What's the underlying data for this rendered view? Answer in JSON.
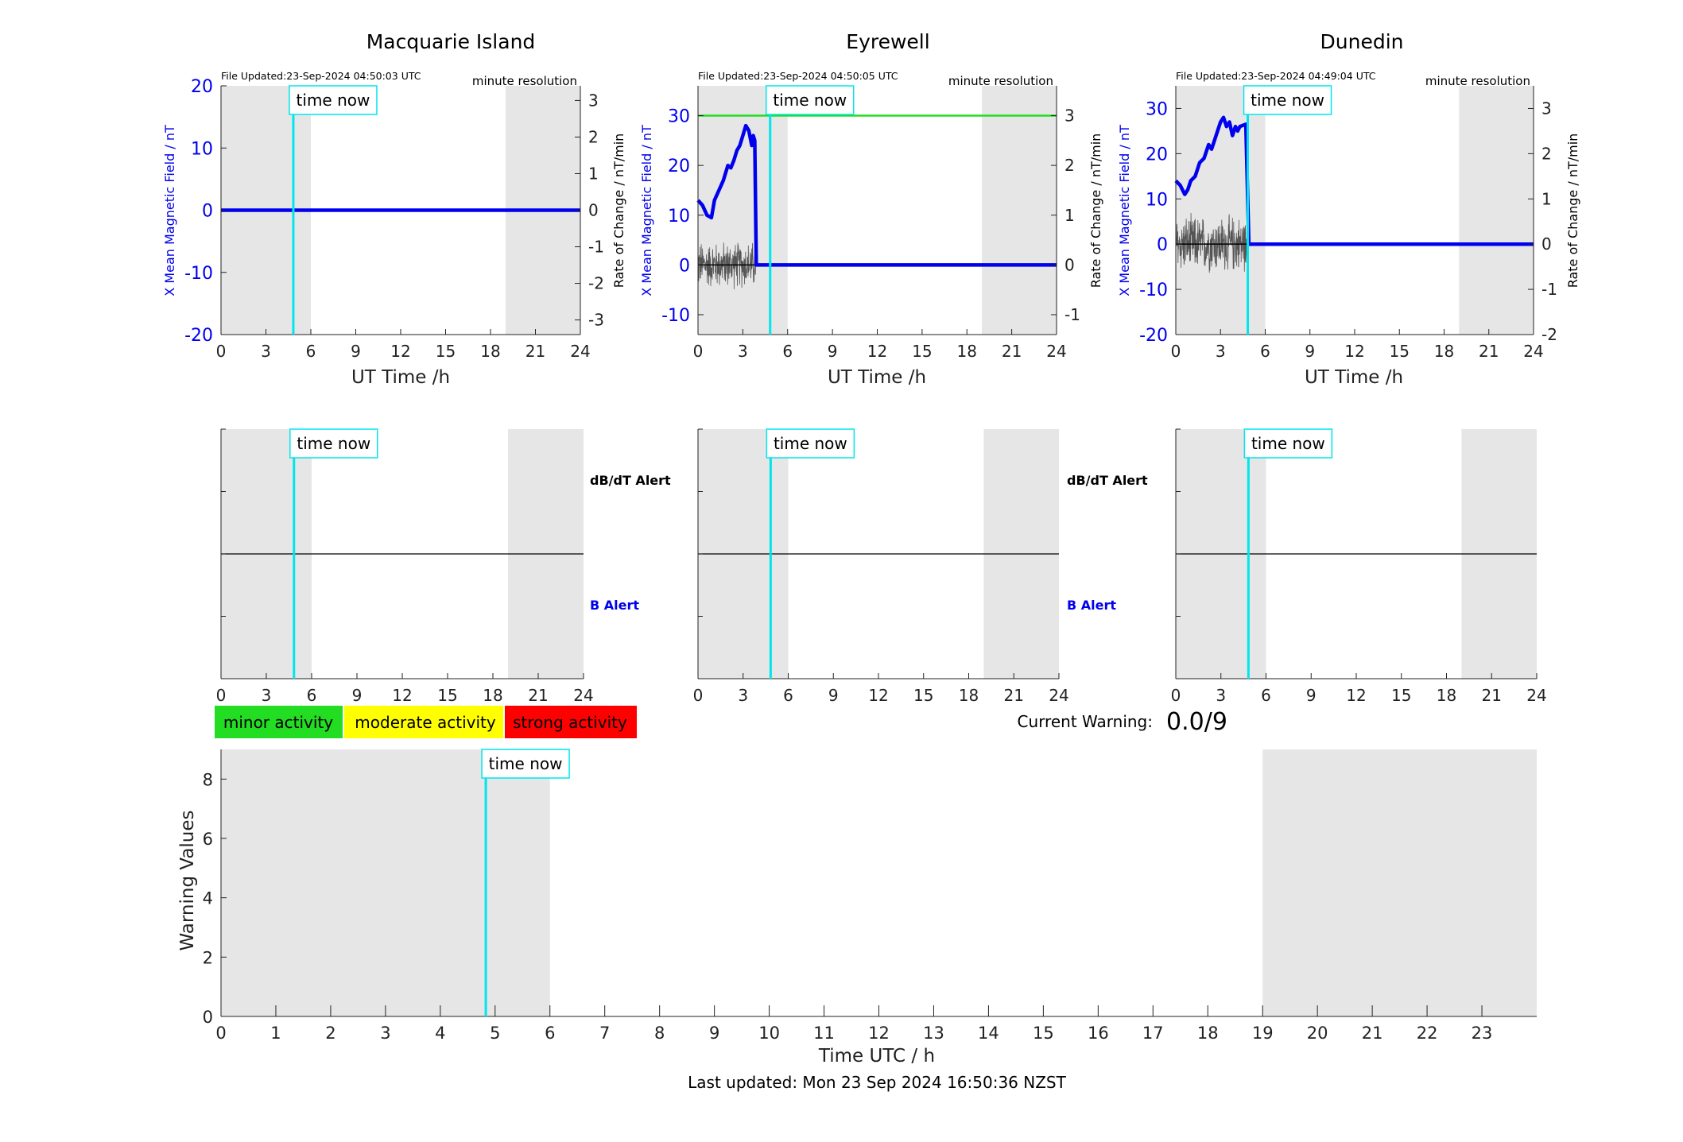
{
  "colors": {
    "blue": "#0000ee",
    "cyan": "#00e5ee",
    "green": "#22dd22",
    "yellow": "#ffff00",
    "red": "#ff0000",
    "shade": "#e6e6e6",
    "axis": "#222222"
  },
  "labels": {
    "time_now": "time now",
    "ut_time": "UT Time /h",
    "y_left": "X Mean Magnetic Field / nT",
    "y_right": "Rate of Change / nT/min",
    "resolution": "minute resolution",
    "dbdt_alert": "dB/dT Alert",
    "b_alert": "B Alert",
    "current_warning_label": "Current Warning:",
    "current_warning_value": "0.0/9",
    "warning_ylabel": "Warning Values",
    "warning_xlabel": "Time UTC / h",
    "last_updated": "Last updated: Mon 23 Sep 2024 16:50:36 NZST"
  },
  "legend": [
    {
      "label": "minor activity",
      "color": "#22dd22"
    },
    {
      "label": "moderate activity",
      "color": "#ffff00"
    },
    {
      "label": "strong activity",
      "color": "#ff0000"
    }
  ],
  "chart_data": [
    {
      "type": "line",
      "station": "Macquarie Island",
      "title": "Macquarie Island",
      "file_updated": "File Updated:23-Sep-2024 04:50:03 UTC",
      "xlabel": "UT Time /h",
      "ylabel": "X Mean Magnetic Field / nT",
      "y2label": "Rate of Change / nT/min",
      "xlim": [
        0,
        24
      ],
      "ylim": [
        -20,
        20
      ],
      "y2lim": [
        -3.4,
        3.4
      ],
      "xticks": [
        0,
        3,
        6,
        9,
        12,
        15,
        18,
        21,
        24
      ],
      "yticks": [
        -20,
        -10,
        0,
        10,
        20
      ],
      "y2ticks": [
        -3,
        -2,
        -1,
        0,
        1,
        2,
        3
      ],
      "time_now": 4.83,
      "shaded": [
        [
          0,
          6
        ],
        [
          19,
          24
        ]
      ],
      "series": [
        {
          "values": [
            [
              0,
              0
            ],
            [
              24,
              0
            ]
          ],
          "color": "#0000ee"
        }
      ],
      "threshold": null,
      "rate_noise": null
    },
    {
      "type": "line",
      "station": "Eyrewell",
      "title": "Eyrewell",
      "file_updated": "File Updated:23-Sep-2024 04:50:05 UTC",
      "xlabel": "UT Time /h",
      "ylabel": "X Mean Magnetic Field / nT",
      "y2label": "Rate of Change / nT/min",
      "xlim": [
        0,
        24
      ],
      "ylim": [
        -14,
        36
      ],
      "y2lim": [
        -1.4,
        3.6
      ],
      "xticks": [
        0,
        3,
        6,
        9,
        12,
        15,
        18,
        21,
        24
      ],
      "yticks": [
        -10,
        0,
        10,
        20,
        30
      ],
      "y2ticks": [
        -1,
        0,
        1,
        2,
        3
      ],
      "time_now": 4.83,
      "shaded": [
        [
          0,
          6
        ],
        [
          19,
          24
        ]
      ],
      "series": [
        {
          "values": [
            [
              0,
              13
            ],
            [
              0.3,
              12
            ],
            [
              0.6,
              10
            ],
            [
              0.9,
              9.5
            ],
            [
              1.1,
              13
            ],
            [
              1.4,
              15
            ],
            [
              1.7,
              17
            ],
            [
              2.0,
              20
            ],
            [
              2.2,
              19.5
            ],
            [
              2.4,
              21
            ],
            [
              2.6,
              23
            ],
            [
              2.8,
              24
            ],
            [
              3.0,
              26
            ],
            [
              3.2,
              28
            ],
            [
              3.4,
              27
            ],
            [
              3.6,
              24
            ],
            [
              3.7,
              26
            ],
            [
              3.8,
              25
            ],
            [
              3.9,
              0
            ],
            [
              24,
              0
            ]
          ],
          "color": "#0000ee"
        }
      ],
      "threshold": {
        "value": 3.0,
        "axis": "right",
        "color": "#22dd22"
      },
      "rate_noise": {
        "from": 0,
        "to": 3.9,
        "amplitude": 0.45
      }
    },
    {
      "type": "line",
      "station": "Dunedin",
      "title": "Dunedin",
      "file_updated": "File Updated:23-Sep-2024 04:49:04 UTC",
      "xlabel": "UT Time /h",
      "ylabel": "X Mean Magnetic Field / nT",
      "y2label": "Rate of Change / nT/min",
      "xlim": [
        0,
        24
      ],
      "ylim": [
        -20,
        35
      ],
      "y2lim": [
        -2,
        3.5
      ],
      "xticks": [
        0,
        3,
        6,
        9,
        12,
        15,
        18,
        21,
        24
      ],
      "yticks": [
        -20,
        -10,
        0,
        10,
        20,
        30
      ],
      "y2ticks": [
        -2,
        -1,
        0,
        1,
        2,
        3
      ],
      "time_now": 4.83,
      "shaded": [
        [
          0,
          6
        ],
        [
          19,
          24
        ]
      ],
      "series": [
        {
          "values": [
            [
              0,
              14
            ],
            [
              0.3,
              13
            ],
            [
              0.6,
              11
            ],
            [
              0.8,
              12
            ],
            [
              1.0,
              14
            ],
            [
              1.3,
              15
            ],
            [
              1.6,
              18
            ],
            [
              1.9,
              19
            ],
            [
              2.2,
              22
            ],
            [
              2.4,
              21
            ],
            [
              2.6,
              23
            ],
            [
              2.8,
              25
            ],
            [
              3.0,
              27
            ],
            [
              3.2,
              28
            ],
            [
              3.4,
              26
            ],
            [
              3.6,
              27
            ],
            [
              3.8,
              24
            ],
            [
              4.0,
              26
            ],
            [
              4.15,
              25
            ],
            [
              4.3,
              26
            ],
            [
              4.7,
              26.5
            ],
            [
              4.9,
              0
            ],
            [
              24,
              0
            ]
          ],
          "color": "#0000ee"
        }
      ],
      "threshold": null,
      "rate_noise": {
        "from": 0,
        "to": 4.9,
        "amplitude": 0.6
      }
    },
    {
      "type": "line",
      "panel": "alerts-macquarie",
      "xlim": [
        0,
        24
      ],
      "xticks": [
        0,
        3,
        6,
        9,
        12,
        15,
        18,
        21,
        24
      ],
      "time_now": 4.83,
      "shaded": [
        [
          0,
          6
        ],
        [
          19,
          24
        ]
      ]
    },
    {
      "type": "line",
      "panel": "alerts-eyrewell",
      "xlim": [
        0,
        24
      ],
      "xticks": [
        0,
        3,
        6,
        9,
        12,
        15,
        18,
        21,
        24
      ],
      "time_now": 4.83,
      "shaded": [
        [
          0,
          6
        ],
        [
          19,
          24
        ]
      ]
    },
    {
      "type": "line",
      "panel": "alerts-dunedin",
      "xlim": [
        0,
        24
      ],
      "xticks": [
        0,
        3,
        6,
        9,
        12,
        15,
        18,
        21,
        24
      ],
      "time_now": 4.83,
      "shaded": [
        [
          0,
          6
        ],
        [
          19,
          24
        ]
      ]
    },
    {
      "type": "bar",
      "panel": "warning-values",
      "xlabel": "Time UTC / h",
      "ylabel": "Warning Values",
      "xlim": [
        0,
        24
      ],
      "ylim": [
        0,
        9
      ],
      "xticks": [
        0,
        1,
        2,
        3,
        4,
        5,
        6,
        7,
        8,
        9,
        10,
        11,
        12,
        13,
        14,
        15,
        16,
        17,
        18,
        19,
        20,
        21,
        22,
        23
      ],
      "yticks": [
        0,
        2,
        4,
        6,
        8
      ],
      "time_now": 4.83,
      "shaded": [
        [
          0,
          6
        ],
        [
          19,
          24
        ]
      ],
      "values": []
    }
  ]
}
